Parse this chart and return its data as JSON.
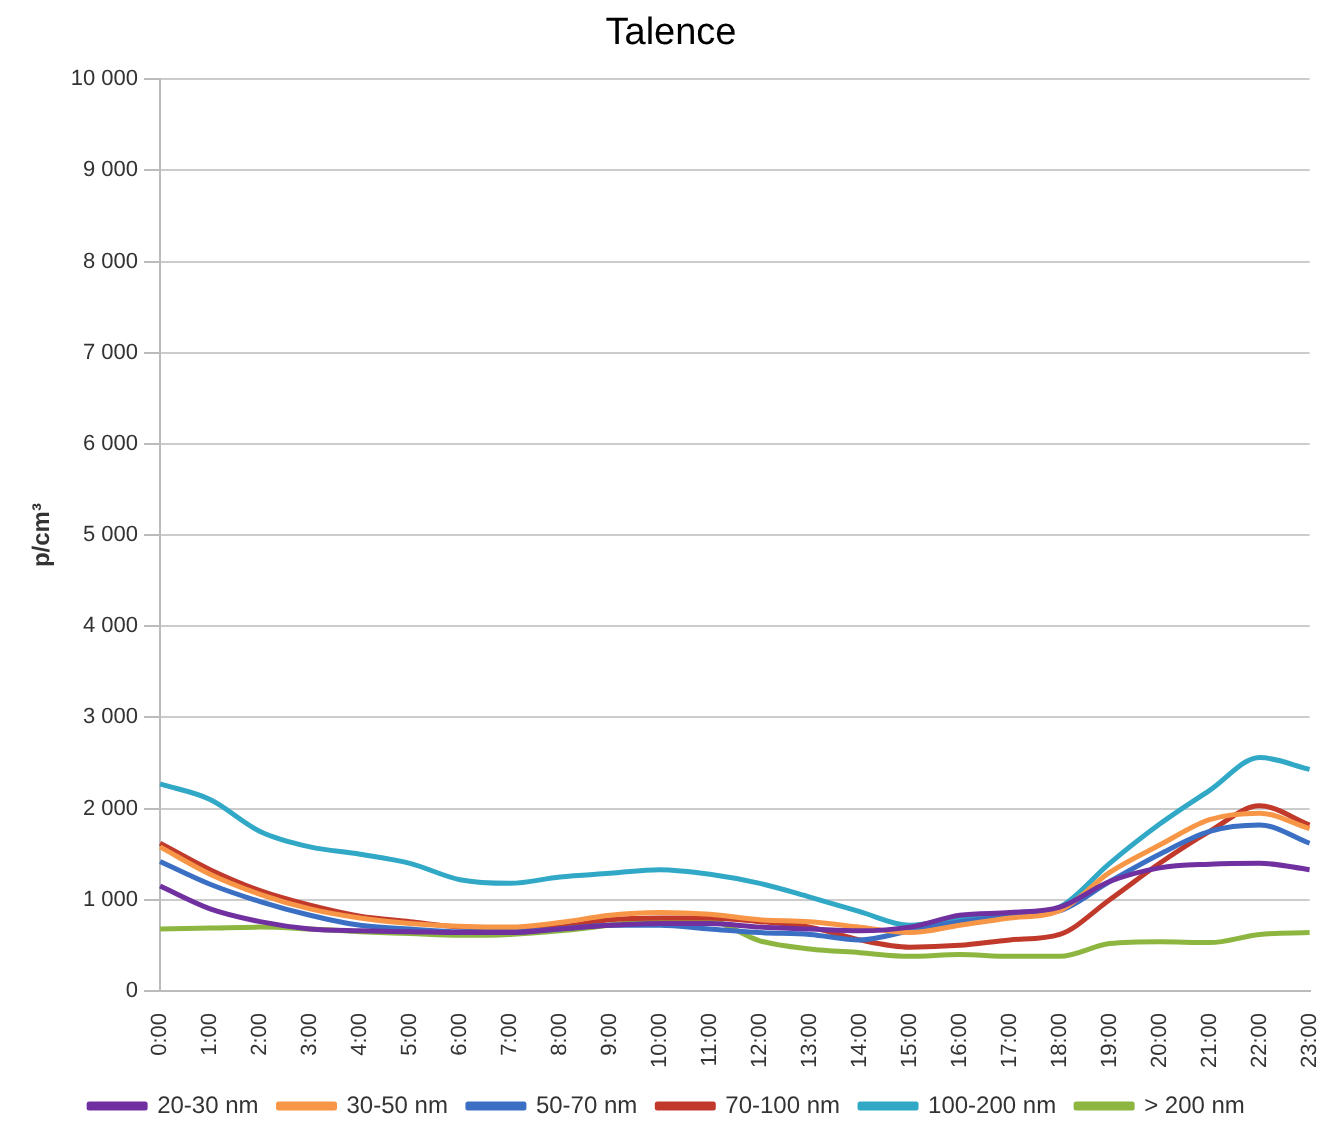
{
  "chart_data": {
    "type": "line",
    "title": "Talence",
    "ylabel": "p/cm³",
    "categories": [
      "0:00",
      "1:00",
      "2:00",
      "3:00",
      "4:00",
      "5:00",
      "6:00",
      "7:00",
      "8:00",
      "9:00",
      "10:00",
      "11:00",
      "12:00",
      "13:00",
      "14:00",
      "15:00",
      "16:00",
      "17:00",
      "18:00",
      "19:00",
      "20:00",
      "21:00",
      "22:00",
      "23:00"
    ],
    "ylim": [
      0,
      10000
    ],
    "yticks": [
      {
        "value": 0,
        "label": "0"
      },
      {
        "value": 1000,
        "label": "1 000"
      },
      {
        "value": 2000,
        "label": "2 000"
      },
      {
        "value": 3000,
        "label": "3 000"
      },
      {
        "value": 4000,
        "label": "4 000"
      },
      {
        "value": 5000,
        "label": "5 000"
      },
      {
        "value": 6000,
        "label": "6 000"
      },
      {
        "value": 7000,
        "label": "7 000"
      },
      {
        "value": 8000,
        "label": "8 000"
      },
      {
        "value": 9000,
        "label": "9 000"
      },
      {
        "value": 10000,
        "label": "10 000"
      }
    ],
    "grid": "y",
    "legend": "bottom",
    "marker": "none",
    "line_style": "solid",
    "series": [
      {
        "name": "20-30 nm",
        "color": "#7030a0",
        "values": [
          1150,
          900,
          760,
          680,
          660,
          650,
          640,
          640,
          680,
          720,
          740,
          740,
          700,
          680,
          660,
          700,
          830,
          860,
          920,
          1200,
          1350,
          1390,
          1400,
          1330
        ]
      },
      {
        "name": "30-50 nm",
        "color": "#f79646",
        "values": [
          1580,
          1280,
          1060,
          900,
          800,
          740,
          710,
          700,
          750,
          830,
          860,
          840,
          780,
          760,
          700,
          640,
          720,
          800,
          880,
          1300,
          1600,
          1880,
          1950,
          1780
        ]
      },
      {
        "name": "50-70 nm",
        "color": "#3a6fc4",
        "values": [
          1420,
          1170,
          980,
          830,
          720,
          680,
          650,
          650,
          680,
          720,
          720,
          680,
          640,
          620,
          560,
          660,
          760,
          820,
          880,
          1200,
          1500,
          1750,
          1820,
          1620
        ]
      },
      {
        "name": "70-100 nm",
        "color": "#c0392b",
        "values": [
          1620,
          1330,
          1100,
          940,
          820,
          760,
          700,
          680,
          700,
          780,
          800,
          800,
          760,
          700,
          560,
          480,
          500,
          560,
          620,
          1000,
          1400,
          1750,
          2030,
          1820
        ]
      },
      {
        "name": "100-200 nm",
        "color": "#31a9c6",
        "values": [
          2270,
          2100,
          1750,
          1580,
          1500,
          1400,
          1220,
          1180,
          1250,
          1290,
          1330,
          1280,
          1180,
          1030,
          870,
          720,
          800,
          830,
          920,
          1400,
          1830,
          2200,
          2560,
          2430
        ]
      },
      {
        "name": "> 200 nm",
        "color": "#8db640",
        "values": [
          680,
          690,
          700,
          680,
          650,
          630,
          610,
          620,
          660,
          720,
          780,
          770,
          550,
          460,
          420,
          380,
          400,
          380,
          380,
          520,
          540,
          530,
          620,
          640
        ]
      }
    ]
  }
}
